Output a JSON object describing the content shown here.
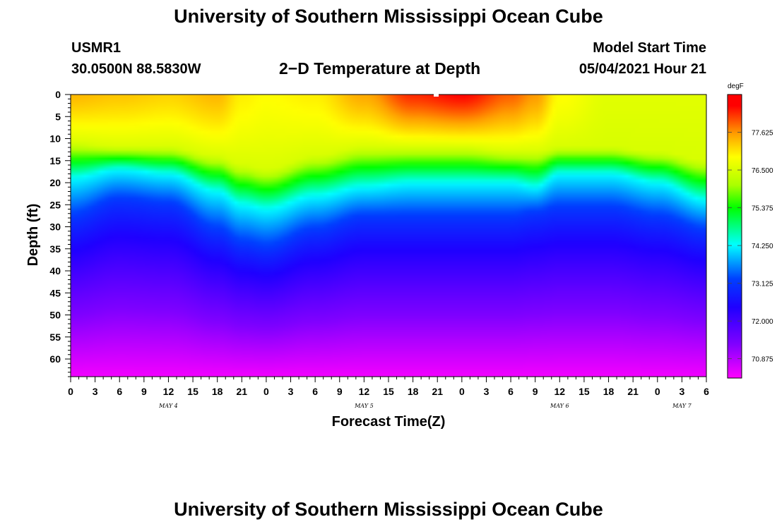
{
  "page": {
    "title_top": "University of Southern Mississippi Ocean Cube",
    "title_bottom": "University of Southern Mississippi Ocean Cube",
    "station_id": "USMR1",
    "coordinates": "30.0500N  88.5830W",
    "subtitle": "2−D Temperature at Depth",
    "model_start_label": "Model Start Time",
    "model_start_value": "05/04/2021 Hour 21"
  },
  "chart_data": {
    "type": "heatmap",
    "title": "2−D Temperature at Depth",
    "xlabel": "Forecast Time(Z)",
    "ylabel": "Depth (ft)",
    "x_hours_range": [
      0,
      78
    ],
    "x_tick_hours": [
      0,
      3,
      6,
      9,
      12,
      15,
      18,
      21,
      24,
      27,
      30,
      33,
      36,
      39,
      42,
      45,
      48,
      51,
      54,
      57,
      60,
      63,
      66,
      69,
      72,
      75,
      78
    ],
    "x_tick_labels": [
      "0",
      "3",
      "6",
      "9",
      "12",
      "15",
      "18",
      "21",
      "0",
      "3",
      "6",
      "9",
      "12",
      "15",
      "18",
      "21",
      "0",
      "3",
      "6",
      "9",
      "12",
      "15",
      "18",
      "21",
      "0",
      "3",
      "6"
    ],
    "day_labels": [
      {
        "text": "MAY 4",
        "hour": 12
      },
      {
        "text": "MAY 5",
        "hour": 36
      },
      {
        "text": "MAY 6",
        "hour": 60
      },
      {
        "text": "MAY 7",
        "hour": 75
      }
    ],
    "y_range_ft": [
      0,
      64
    ],
    "y_tick_labels": [
      "0",
      "5",
      "10",
      "15",
      "20",
      "25",
      "30",
      "35",
      "40",
      "45",
      "50",
      "55",
      "60"
    ],
    "y_ticks_ft": [
      0,
      5,
      10,
      15,
      20,
      25,
      30,
      35,
      40,
      45,
      50,
      55,
      60
    ],
    "colorbar": {
      "units": "degF",
      "min": 70.3,
      "max": 78.75,
      "tick_values": [
        70.875,
        72.0,
        73.125,
        74.25,
        75.375,
        76.5,
        77.625
      ],
      "tick_labels": [
        "70.875",
        "72.000",
        "73.125",
        "74.250",
        "75.375",
        "76.500",
        "77.625"
      ],
      "colors": [
        "#ff00ff",
        "#8000ff",
        "#1f00ff",
        "#0040ff",
        "#00ffff",
        "#00ff00",
        "#aaff00",
        "#ffff00",
        "#ffa000",
        "#ff0000"
      ],
      "color_stops": [
        0.0,
        0.12,
        0.25,
        0.35,
        0.47,
        0.6,
        0.68,
        0.78,
        0.86,
        0.96
      ]
    },
    "contours": {
      "hours": [
        0,
        6,
        12,
        18,
        21,
        24,
        30,
        36,
        42,
        48,
        54,
        57,
        60,
        66,
        72,
        78
      ],
      "isotherm_76_5_ft": [
        11,
        12,
        12,
        14,
        16,
        17,
        14,
        12,
        12,
        12,
        13,
        13,
        12,
        12,
        13,
        15
      ],
      "isotherm_74_25_ft": [
        19,
        17,
        18,
        22,
        25,
        26,
        23,
        21,
        20,
        20,
        20,
        21,
        18,
        18,
        20,
        24
      ],
      "isotherm_73_125_ft": [
        28,
        24,
        25,
        31,
        34,
        35,
        31,
        28,
        28,
        28,
        28,
        27,
        26,
        26,
        28,
        31
      ],
      "surface_temp_degF": [
        77.4,
        77.3,
        77.2,
        77.4,
        77.0,
        76.9,
        77.0,
        77.5,
        78.2,
        78.4,
        77.9,
        77.6,
        76.9,
        76.6,
        76.6,
        76.6
      ],
      "bottom_temp_degF": 70.4
    }
  }
}
